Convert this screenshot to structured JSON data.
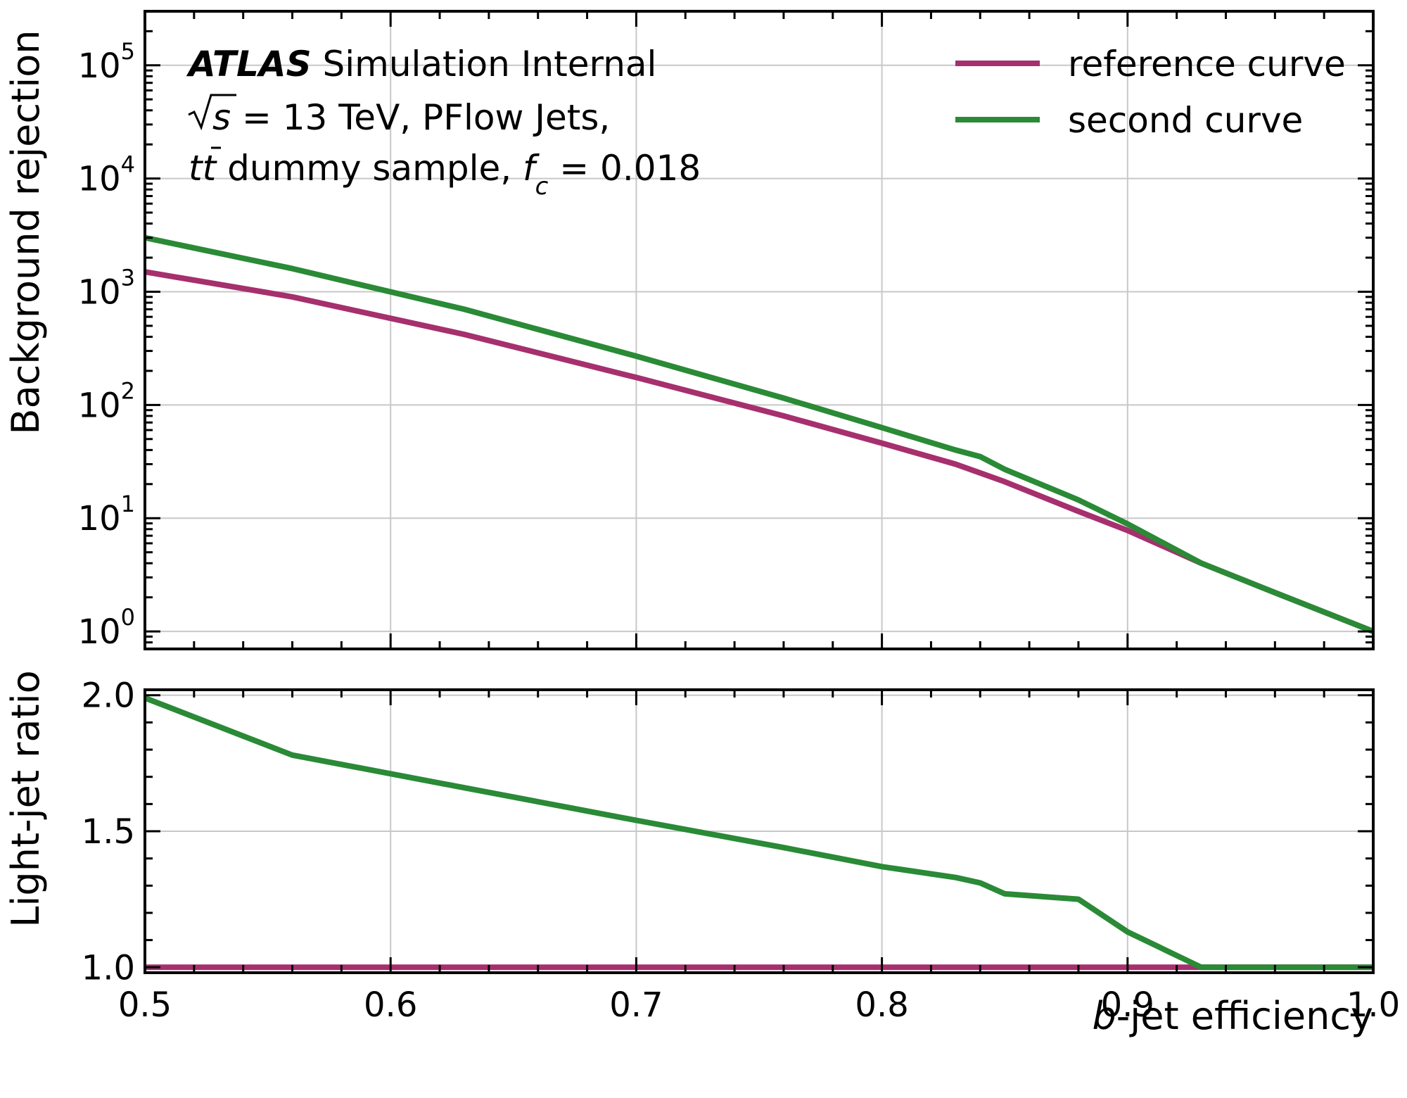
{
  "chart_data": {
    "type": "line",
    "annotations": {
      "experiment": "ATLAS",
      "status": "Simulation Internal",
      "energy_prefix": "s",
      "energy_text": " = 13 TeV, PFlow Jets,",
      "sample_tt": "tt",
      "sample_text": " dummy sample, ",
      "fc_symbol": "f",
      "fc_sub": "c",
      "fc_text": " = 0.018"
    },
    "legend": {
      "placement": "top-right"
    },
    "grid": true,
    "xlabel_var": "b",
    "xlabel_rest": "-jet efficiency",
    "xlim": [
      0.5,
      1.0
    ],
    "x_ticks": [
      "0.5",
      "0.6",
      "0.7",
      "0.8",
      "0.9",
      "1.0"
    ],
    "top_panel": {
      "ylabel": "Background rejection",
      "yscale": "log",
      "ylim": [
        0.7,
        300000
      ],
      "y_tick_base": "10",
      "y_tick_exponents": [
        "0",
        "1",
        "2",
        "3",
        "4",
        "5"
      ],
      "series": [
        {
          "name": "reference curve",
          "color": "#a6306e",
          "x": [
            0.5,
            0.56,
            0.63,
            0.7,
            0.76,
            0.8,
            0.83,
            0.85,
            0.88,
            0.9,
            0.93,
            0.96,
            1.0
          ],
          "y": [
            1500,
            900,
            420,
            175,
            80,
            46,
            30,
            21,
            11.5,
            7.8,
            4.0,
            2.2,
            1.0
          ]
        },
        {
          "name": "second curve",
          "color": "#2a8a36",
          "x": [
            0.5,
            0.56,
            0.63,
            0.7,
            0.76,
            0.8,
            0.83,
            0.84,
            0.85,
            0.88,
            0.9,
            0.93,
            0.96,
            1.0
          ],
          "y": [
            3000,
            1600,
            700,
            270,
            115,
            63,
            40,
            35,
            27,
            14.5,
            8.9,
            4.0,
            2.2,
            1.0
          ]
        }
      ]
    },
    "bottom_panel": {
      "ylabel": "Light-jet ratio",
      "ylim": [
        0.98,
        2.02
      ],
      "y_ticks": [
        "1.0",
        "1.5",
        "2.0"
      ],
      "series": [
        {
          "name": "reference curve",
          "color": "#a6306e",
          "x": [
            0.5,
            0.6,
            0.7,
            0.8,
            0.9,
            0.93,
            1.0
          ],
          "y": [
            1.0,
            1.0,
            1.0,
            1.0,
            1.0,
            1.0,
            1.0
          ]
        },
        {
          "name": "second curve",
          "color": "#2a8a36",
          "x": [
            0.5,
            0.56,
            0.63,
            0.7,
            0.76,
            0.8,
            0.83,
            0.84,
            0.85,
            0.88,
            0.9,
            0.93,
            0.96,
            1.0
          ],
          "y": [
            1.99,
            1.78,
            1.66,
            1.54,
            1.44,
            1.37,
            1.33,
            1.31,
            1.27,
            1.25,
            1.13,
            1.0,
            1.0,
            1.0
          ]
        }
      ]
    }
  }
}
